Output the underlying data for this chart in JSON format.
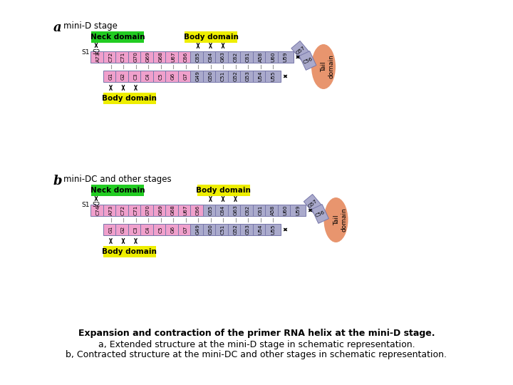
{
  "title_line1": "Expansion and contraction of the primer RNA helix at the mini-D stage.",
  "title_line2": "a, Extended structure at the mini-D stage in schematic representation.",
  "title_line3": "b, Contracted structure at the mini-DC and other stages in schematic representation.",
  "neck_domain_color": "#22cc22",
  "body_domain_color": "#eeee00",
  "pink_box_color": "#f0a0cc",
  "blue_box_color": "#aaaacc",
  "tail_color": "#e8956e",
  "top_row_a": [
    "A73",
    "C72",
    "C71",
    "G70",
    "G69",
    "G68",
    "U67",
    "C66",
    "C65",
    "C64",
    "G63",
    "C62",
    "C61",
    "A58"
  ],
  "bottom_row_a": [
    "G1",
    "G2",
    "C3",
    "C4",
    "C5",
    "G6",
    "G7",
    "G49",
    "G50",
    "C51",
    "G52",
    "G53",
    "U54",
    "U55"
  ],
  "top_row_b": [
    "C74",
    "A73",
    "C72",
    "C71",
    "G70",
    "G69",
    "G68",
    "U67",
    "C66",
    "C65",
    "C64",
    "G63",
    "C62",
    "C61",
    "A58"
  ],
  "bottom_row_b": [
    "G1",
    "G2",
    "C3",
    "C4",
    "C5",
    "G6",
    "G7",
    "G49",
    "G50",
    "C51",
    "G52",
    "G53",
    "U54",
    "U55"
  ],
  "tail_top_a": [
    "U60",
    "U59"
  ],
  "tail_top_b": [
    "U60",
    "U59"
  ],
  "tail_angled": [
    "G57",
    "C56"
  ],
  "bg_color": "#ffffff"
}
